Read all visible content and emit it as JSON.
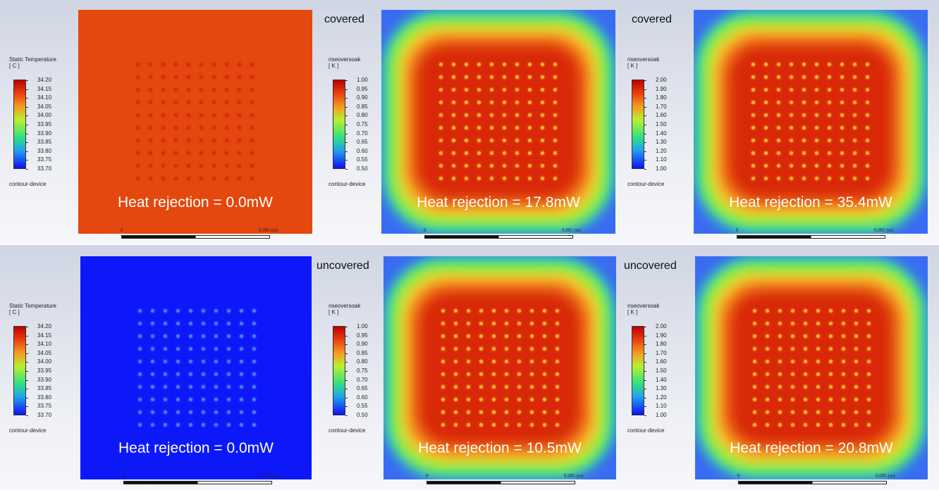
{
  "panels": [
    {
      "condition": "",
      "legend_title": "Static Temperature",
      "legend_unit": "[ C ]",
      "ticks": [
        "34.20",
        "34.15",
        "34.10",
        "34.05",
        "34.00",
        "33.95",
        "33.90",
        "33.85",
        "33.80",
        "33.75",
        "33.70"
      ],
      "legend_footer": "contour-device",
      "heat_text": "Heat rejection = 0.0mW",
      "scale_start": "0",
      "scale_end": "0.005 (m)",
      "field": "uniform-hot",
      "base_color": "#e4480e",
      "dot_color": "#d82a08"
    },
    {
      "condition": "covered",
      "legend_title": "riseoversoak",
      "legend_unit": "[ K ]",
      "ticks": [
        "1.00",
        "0.95",
        "0.90",
        "0.85",
        "0.80",
        "0.75",
        "0.70",
        "0.65",
        "0.60",
        "0.55",
        "0.50"
      ],
      "legend_footer": "contour-device",
      "heat_text": "Heat rejection = 17.8mW",
      "scale_start": "0",
      "scale_end": "0.005 (m)",
      "field": "rainbow",
      "dot_color": "#ffb030"
    },
    {
      "condition": "covered",
      "legend_title": "riseoversoak",
      "legend_unit": "[ K ]",
      "ticks": [
        "2.00",
        "1.90",
        "1.80",
        "1.70",
        "1.60",
        "1.50",
        "1.40",
        "1.30",
        "1.20",
        "1.10",
        "1.00"
      ],
      "legend_footer": "contour-device",
      "heat_text": "Heat rejection = 35.4mW",
      "scale_start": "0",
      "scale_end": "0.005 (m)",
      "field": "rainbow",
      "dot_color": "#ffb030"
    },
    {
      "condition": "",
      "legend_title": "Static Temperature",
      "legend_unit": "[ C ]",
      "ticks": [
        "34.20",
        "34.15",
        "34.10",
        "34.05",
        "34.00",
        "33.95",
        "33.90",
        "33.85",
        "33.80",
        "33.75",
        "33.70"
      ],
      "legend_footer": "contour-device",
      "heat_text": "Heat rejection = 0.0mW",
      "scale_start": "0",
      "scale_end": "0.005 (m)",
      "field": "uniform-cold",
      "base_color": "#0c18f8",
      "dot_color": "#4a7cf8"
    },
    {
      "condition": "uncovered",
      "legend_title": "riseoversoak",
      "legend_unit": "[ K ]",
      "ticks": [
        "1.00",
        "0.95",
        "0.90",
        "0.85",
        "0.80",
        "0.75",
        "0.70",
        "0.65",
        "0.60",
        "0.55",
        "0.50"
      ],
      "legend_footer": "contour-device",
      "heat_text": "Heat rejection = 10.5mW",
      "scale_start": "0",
      "scale_end": "0.005 (m)",
      "field": "rainbow",
      "dot_color": "#ffb030"
    },
    {
      "condition": "uncovered",
      "legend_title": "riseoversoak",
      "legend_unit": "[ K ]",
      "ticks": [
        "2.00",
        "1.90",
        "1.80",
        "1.70",
        "1.60",
        "1.50",
        "1.40",
        "1.30",
        "1.20",
        "1.10",
        "1.00"
      ],
      "legend_footer": "contour-device",
      "heat_text": "Heat rejection = 20.8mW",
      "scale_start": "0",
      "scale_end": "0.005 (m)",
      "field": "rainbow",
      "dot_color": "#ffb030"
    }
  ]
}
